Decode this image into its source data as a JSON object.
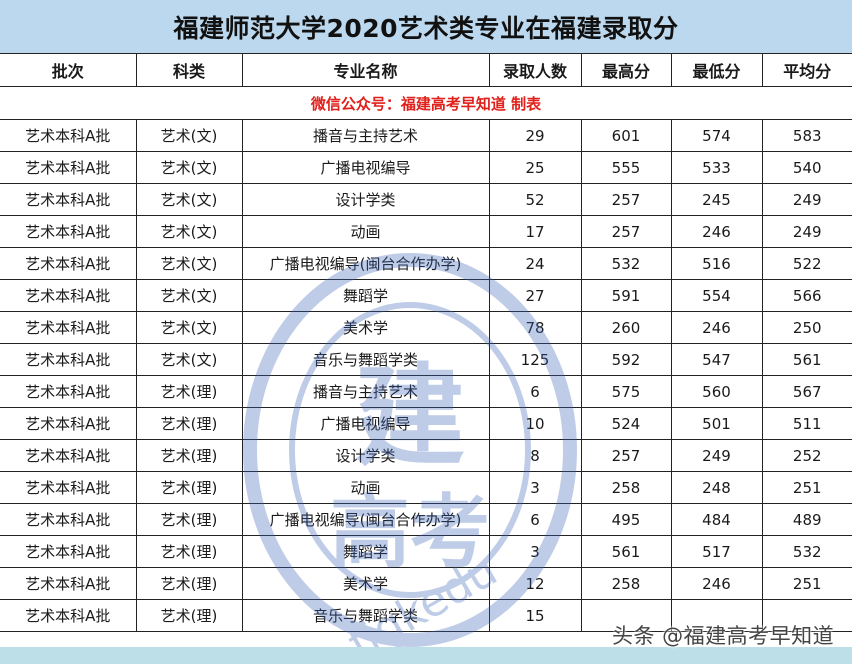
{
  "title": "福建师范大学2020艺术类专业在福建录取分",
  "table": {
    "headers": [
      "批次",
      "科类",
      "专业名称",
      "录取人数",
      "最高分",
      "最低分",
      "平均分"
    ],
    "credit_line": "微信公众号：福建高考早知道  制表",
    "rows": [
      [
        "艺术本科A批",
        "艺术(文)",
        "播音与主持艺术",
        "29",
        "601",
        "574",
        "583"
      ],
      [
        "艺术本科A批",
        "艺术(文)",
        "广播电视编导",
        "25",
        "555",
        "533",
        "540"
      ],
      [
        "艺术本科A批",
        "艺术(文)",
        "设计学类",
        "52",
        "257",
        "245",
        "249"
      ],
      [
        "艺术本科A批",
        "艺术(文)",
        "动画",
        "17",
        "257",
        "246",
        "249"
      ],
      [
        "艺术本科A批",
        "艺术(文)",
        "广播电视编导(闽台合作办学)",
        "24",
        "532",
        "516",
        "522"
      ],
      [
        "艺术本科A批",
        "艺术(文)",
        "舞蹈学",
        "27",
        "591",
        "554",
        "566"
      ],
      [
        "艺术本科A批",
        "艺术(文)",
        "美术学",
        "78",
        "260",
        "246",
        "250"
      ],
      [
        "艺术本科A批",
        "艺术(文)",
        "音乐与舞蹈学类",
        "125",
        "592",
        "547",
        "561"
      ],
      [
        "艺术本科A批",
        "艺术(理)",
        "播音与主持艺术",
        "6",
        "575",
        "560",
        "567"
      ],
      [
        "艺术本科A批",
        "艺术(理)",
        "广播电视编导",
        "10",
        "524",
        "501",
        "511"
      ],
      [
        "艺术本科A批",
        "艺术(理)",
        "设计学类",
        "8",
        "257",
        "249",
        "252"
      ],
      [
        "艺术本科A批",
        "艺术(理)",
        "动画",
        "3",
        "258",
        "248",
        "251"
      ],
      [
        "艺术本科A批",
        "艺术(理)",
        "广播电视编导(闽台合作办学)",
        "6",
        "495",
        "484",
        "489"
      ],
      [
        "艺术本科A批",
        "艺术(理)",
        "舞蹈学",
        "3",
        "561",
        "517",
        "532"
      ],
      [
        "艺术本科A批",
        "艺术(理)",
        "美术学",
        "12",
        "258",
        "246",
        "251"
      ],
      [
        "艺术本科A批",
        "艺术(理)",
        "音乐与舞蹈学类",
        "15",
        "",
        "",
        ""
      ]
    ]
  },
  "watermark": {
    "center_text_1": "建",
    "center_text_2": "高考",
    "ring_text": "福建高考早知道微信公众号",
    "url_text": "fjgkedu"
  },
  "footer_tag": "头条 @福建高考早知道",
  "colors": {
    "title_bg": "#bcd8ee",
    "credit_red": "#e0201a",
    "bottom_band": "#bde0e8",
    "watermark_blue": "#3a63b8"
  }
}
